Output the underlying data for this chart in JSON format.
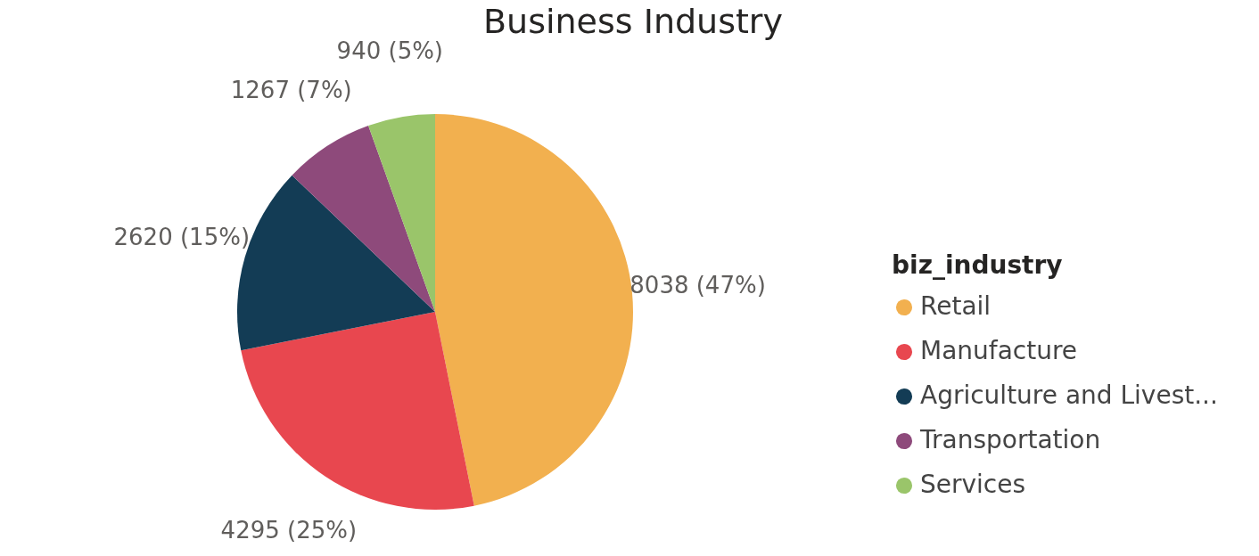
{
  "chart_data": {
    "type": "pie",
    "title": "Business Industry",
    "legend_title": "biz_industry",
    "legend": "right",
    "categories": [
      "Retail",
      "Manufacture",
      "Agriculture and Livest...",
      "Transportation",
      "Services"
    ],
    "values": [
      8038,
      4295,
      2620,
      1267,
      940
    ],
    "colors": [
      "#f2b04f",
      "#e8474f",
      "#133c55",
      "#8e4a7b",
      "#9ac56a"
    ],
    "value_labels": [
      "8038 (47%)",
      "4295 (25%)",
      "2620 (15%)",
      "1267 (7%)",
      "940 (5%)"
    ]
  }
}
